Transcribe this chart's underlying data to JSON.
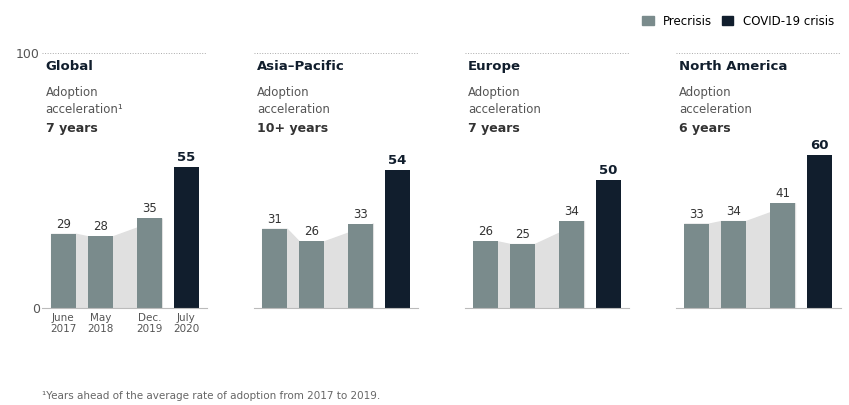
{
  "panels": [
    {
      "title": "Global",
      "annotation_line1": "Adoption",
      "annotation_line2": "acceleration¹",
      "annotation_line3": "7 years",
      "bars": [
        29,
        28,
        35,
        55
      ],
      "precrisis_color": "#7a8b8c",
      "covid_color": "#111e2d",
      "shade_color": "#e0e0e0"
    },
    {
      "title": "Asia–Pacific",
      "annotation_line1": "Adoption",
      "annotation_line2": "acceleration",
      "annotation_line3": "10+ years",
      "bars": [
        31,
        26,
        33,
        54
      ],
      "precrisis_color": "#7a8b8c",
      "covid_color": "#111e2d",
      "shade_color": "#e0e0e0"
    },
    {
      "title": "Europe",
      "annotation_line1": "Adoption",
      "annotation_line2": "acceleration",
      "annotation_line3": "7 years",
      "bars": [
        26,
        25,
        34,
        50
      ],
      "precrisis_color": "#7a8b8c",
      "covid_color": "#111e2d",
      "shade_color": "#e0e0e0"
    },
    {
      "title": "North America",
      "annotation_line1": "Adoption",
      "annotation_line2": "acceleration",
      "annotation_line3": "6 years",
      "bars": [
        33,
        34,
        41,
        60
      ],
      "precrisis_color": "#7a8b8c",
      "covid_color": "#111e2d",
      "shade_color": "#e0e0e0"
    }
  ],
  "x_labels": [
    "June\n2017",
    "May\n2018",
    "Dec.\n2019",
    "July\n2020"
  ],
  "ylim": [
    0,
    100
  ],
  "legend_precrisis_label": "Precrisis",
  "legend_covid_label": "COVID-19 crisis",
  "footnote": "¹Years ahead of the average rate of adoption from 2017 to 2019.",
  "background_color": "#ffffff"
}
